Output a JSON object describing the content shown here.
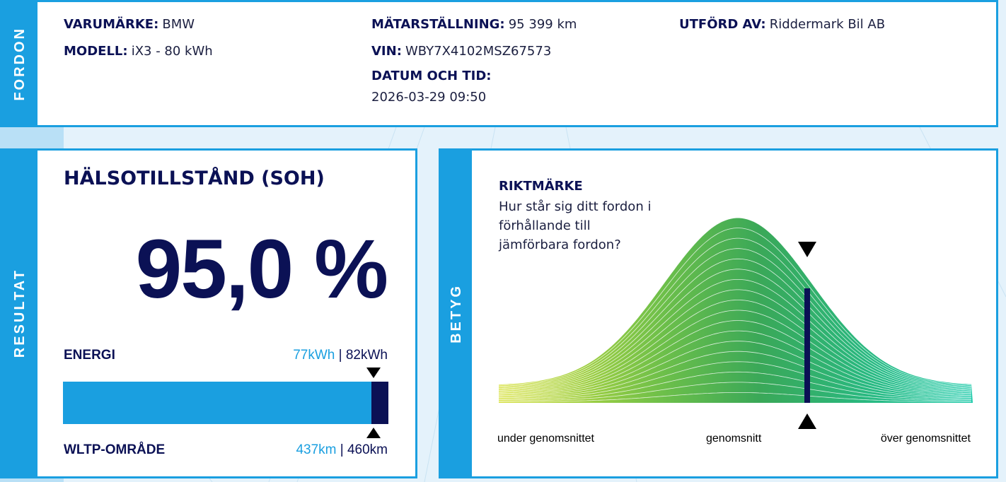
{
  "vehicle": {
    "section": "FORDON",
    "fields": [
      {
        "label": "VARUMÄRKE:",
        "value": "BMW"
      },
      {
        "label": "MODELL:",
        "value": "iX3 - 80 kWh"
      },
      {
        "label": "MÄTARSTÄLLNING:",
        "value": "95 399 km"
      },
      {
        "label": "VIN:",
        "value": "WBY7X4102MSZ67573"
      },
      {
        "label": "DATUM OCH TID:",
        "value": "2026-03-29 09:50"
      },
      {
        "label": "UTFÖRD AV:",
        "value": "Riddermark Bil AB"
      }
    ]
  },
  "result": {
    "section": "RESULTAT",
    "title": "HÄLSOTILLSTÅND (SOH)",
    "soh": "95,0 %",
    "energy": {
      "label": "ENERGI",
      "current": "77kWh",
      "separator": "|",
      "original": "82kWh"
    },
    "range": {
      "label": "WLTP-OMRÅDE",
      "current": "437km",
      "separator": "|",
      "original": "460km"
    }
  },
  "rating": {
    "section": "BETYG",
    "heading": "RIKTMÄRKE",
    "question_lines": [
      "Hur står sig ditt fordon i",
      "förhållande till",
      "jämförbara fordon?"
    ],
    "scale": [
      "under genomsnittet",
      "genomsnitt",
      "över genomsnittet"
    ]
  }
}
